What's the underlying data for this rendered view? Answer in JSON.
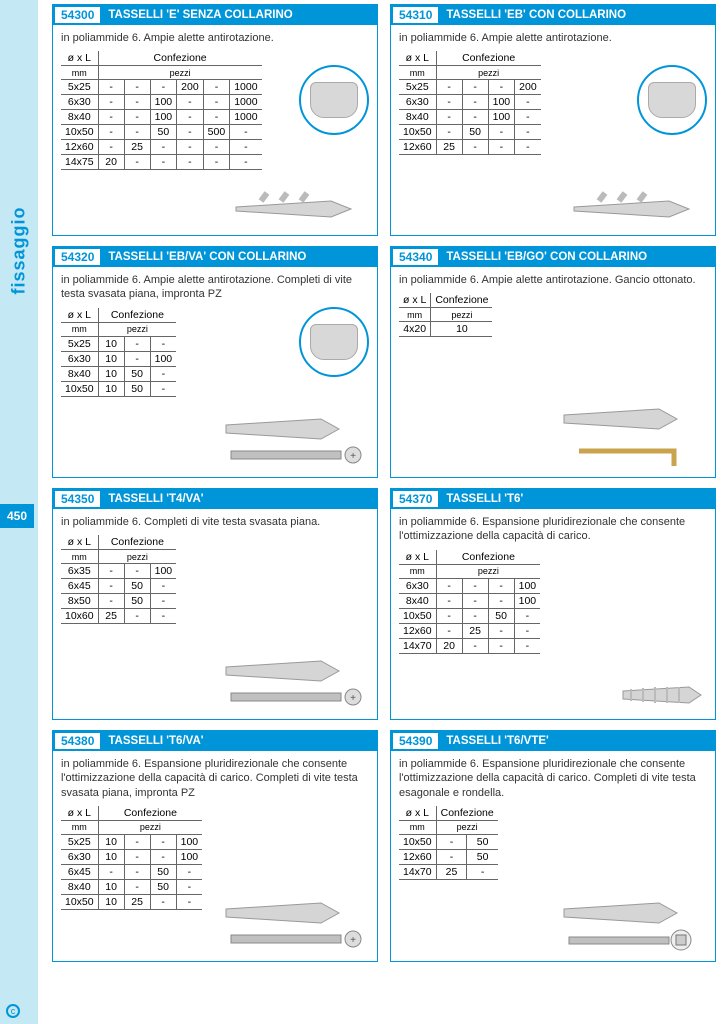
{
  "sidebar": {
    "label": "fissaggio",
    "page_num": "450"
  },
  "table_headers": {
    "dim": "ø x L",
    "dim_unit": "mm",
    "conf": "Confezione",
    "conf_unit": "pezzi"
  },
  "cards": [
    {
      "code": "54300",
      "title": "TASSELLI 'E' SENZA COLLARINO",
      "desc": "in poliammide 6. Ampie alette antirotazione.",
      "cols": 6,
      "has_circle": true,
      "body_class": "card-body-tall",
      "rows": [
        [
          "5x25",
          "-",
          "-",
          "-",
          "200",
          "-",
          "1000"
        ],
        [
          "6x30",
          "-",
          "-",
          "100",
          "-",
          "-",
          "1000"
        ],
        [
          "8x40",
          "-",
          "-",
          "100",
          "-",
          "-",
          "1000"
        ],
        [
          "10x50",
          "-",
          "-",
          "50",
          "-",
          "500",
          "-"
        ],
        [
          "12x60",
          "-",
          "25",
          "-",
          "-",
          "-",
          "-"
        ],
        [
          "14x75",
          "20",
          "-",
          "-",
          "-",
          "-",
          "-"
        ]
      ],
      "anchor": "plug"
    },
    {
      "code": "54310",
      "title": "TASSELLI 'EB' CON COLLARINO",
      "desc": "in poliammide 6. Ampie alette antirotazione.",
      "cols": 4,
      "has_circle": true,
      "body_class": "card-body-tall",
      "rows": [
        [
          "5x25",
          "-",
          "-",
          "-",
          "200"
        ],
        [
          "6x30",
          "-",
          "-",
          "100",
          "-"
        ],
        [
          "8x40",
          "-",
          "-",
          "100",
          "-"
        ],
        [
          "10x50",
          "-",
          "50",
          "-",
          "-"
        ],
        [
          "12x60",
          "25",
          "-",
          "-",
          "-"
        ]
      ],
      "anchor": "plug"
    },
    {
      "code": "54320",
      "title": "TASSELLI 'EB/VA' CON COLLARINO",
      "desc": "in poliammide 6. Ampie alette antirotazione. Completi di vite testa svasata piana, impronta PZ",
      "cols": 3,
      "has_circle": true,
      "body_class": "card-body-tall",
      "rows": [
        [
          "5x25",
          "10",
          "-",
          "-"
        ],
        [
          "6x30",
          "10",
          "-",
          "100"
        ],
        [
          "8x40",
          "10",
          "50",
          "-"
        ],
        [
          "10x50",
          "10",
          "50",
          "-"
        ]
      ],
      "anchor": "plug-screw"
    },
    {
      "code": "54340",
      "title": "TASSELLI 'EB/GO' CON COLLARINO",
      "desc": "in poliammide 6. Ampie alette antirotazione. Gancio ottonato.",
      "cols": 1,
      "has_circle": false,
      "body_class": "card-body-tall",
      "rows": [
        [
          "4x20",
          "10"
        ]
      ],
      "anchor": "plug-hook"
    },
    {
      "code": "54350",
      "title": "TASSELLI 'T4/VA'",
      "desc": "in poliammide 6. Completi di vite testa svasata piana.",
      "cols": 3,
      "has_circle": false,
      "body_class": "card-body-tall",
      "rows": [
        [
          "6x35",
          "-",
          "-",
          "100"
        ],
        [
          "6x45",
          "-",
          "50",
          "-"
        ],
        [
          "8x50",
          "-",
          "50",
          "-"
        ],
        [
          "10x60",
          "25",
          "-",
          "-"
        ]
      ],
      "anchor": "plug-screw-t4"
    },
    {
      "code": "54370",
      "title": "TASSELLI 'T6'",
      "desc": "in poliammide 6. Espansione pluridirezionale che consente l'ottimizzazione della capacità di carico.",
      "cols": 4,
      "has_circle": false,
      "body_class": "card-body-tall",
      "rows": [
        [
          "6x30",
          "-",
          "-",
          "-",
          "100"
        ],
        [
          "8x40",
          "-",
          "-",
          "-",
          "100"
        ],
        [
          "10x50",
          "-",
          "-",
          "50",
          "-"
        ],
        [
          "12x60",
          "-",
          "25",
          "-",
          "-"
        ],
        [
          "14x70",
          "20",
          "-",
          "-",
          "-"
        ]
      ],
      "anchor": "plug-t6"
    },
    {
      "code": "54380",
      "title": "TASSELLI 'T6/VA'",
      "desc": "in poliammide 6. Espansione pluridirezionale che consente l'ottimizzazione della capacità di carico. Completi di vite testa svasata piana, impronta PZ",
      "cols": 4,
      "has_circle": false,
      "body_class": "card-body-tall",
      "rows": [
        [
          "5x25",
          "10",
          "-",
          "-",
          "100"
        ],
        [
          "6x30",
          "10",
          "-",
          "-",
          "100"
        ],
        [
          "6x45",
          "-",
          "-",
          "50",
          "-"
        ],
        [
          "8x40",
          "10",
          "-",
          "50",
          "-"
        ],
        [
          "10x50",
          "10",
          "25",
          "-",
          "-"
        ]
      ],
      "anchor": "plug-screw-t6"
    },
    {
      "code": "54390",
      "title": "TASSELLI 'T6/VTE'",
      "desc": "in poliammide 6. Espansione pluridirezionale che consente l'ottimizzazione della capacità di carico. Completi di vite testa esagonale e rondella.",
      "cols": 2,
      "has_circle": false,
      "body_class": "card-body-tall",
      "rows": [
        [
          "10x50",
          "-",
          "50"
        ],
        [
          "12x60",
          "-",
          "50"
        ],
        [
          "14x70",
          "25",
          "-"
        ]
      ],
      "anchor": "plug-bolt-t6"
    }
  ],
  "colors": {
    "brand": "#0095d8",
    "sidebar_bg": "#c5e8f5"
  }
}
